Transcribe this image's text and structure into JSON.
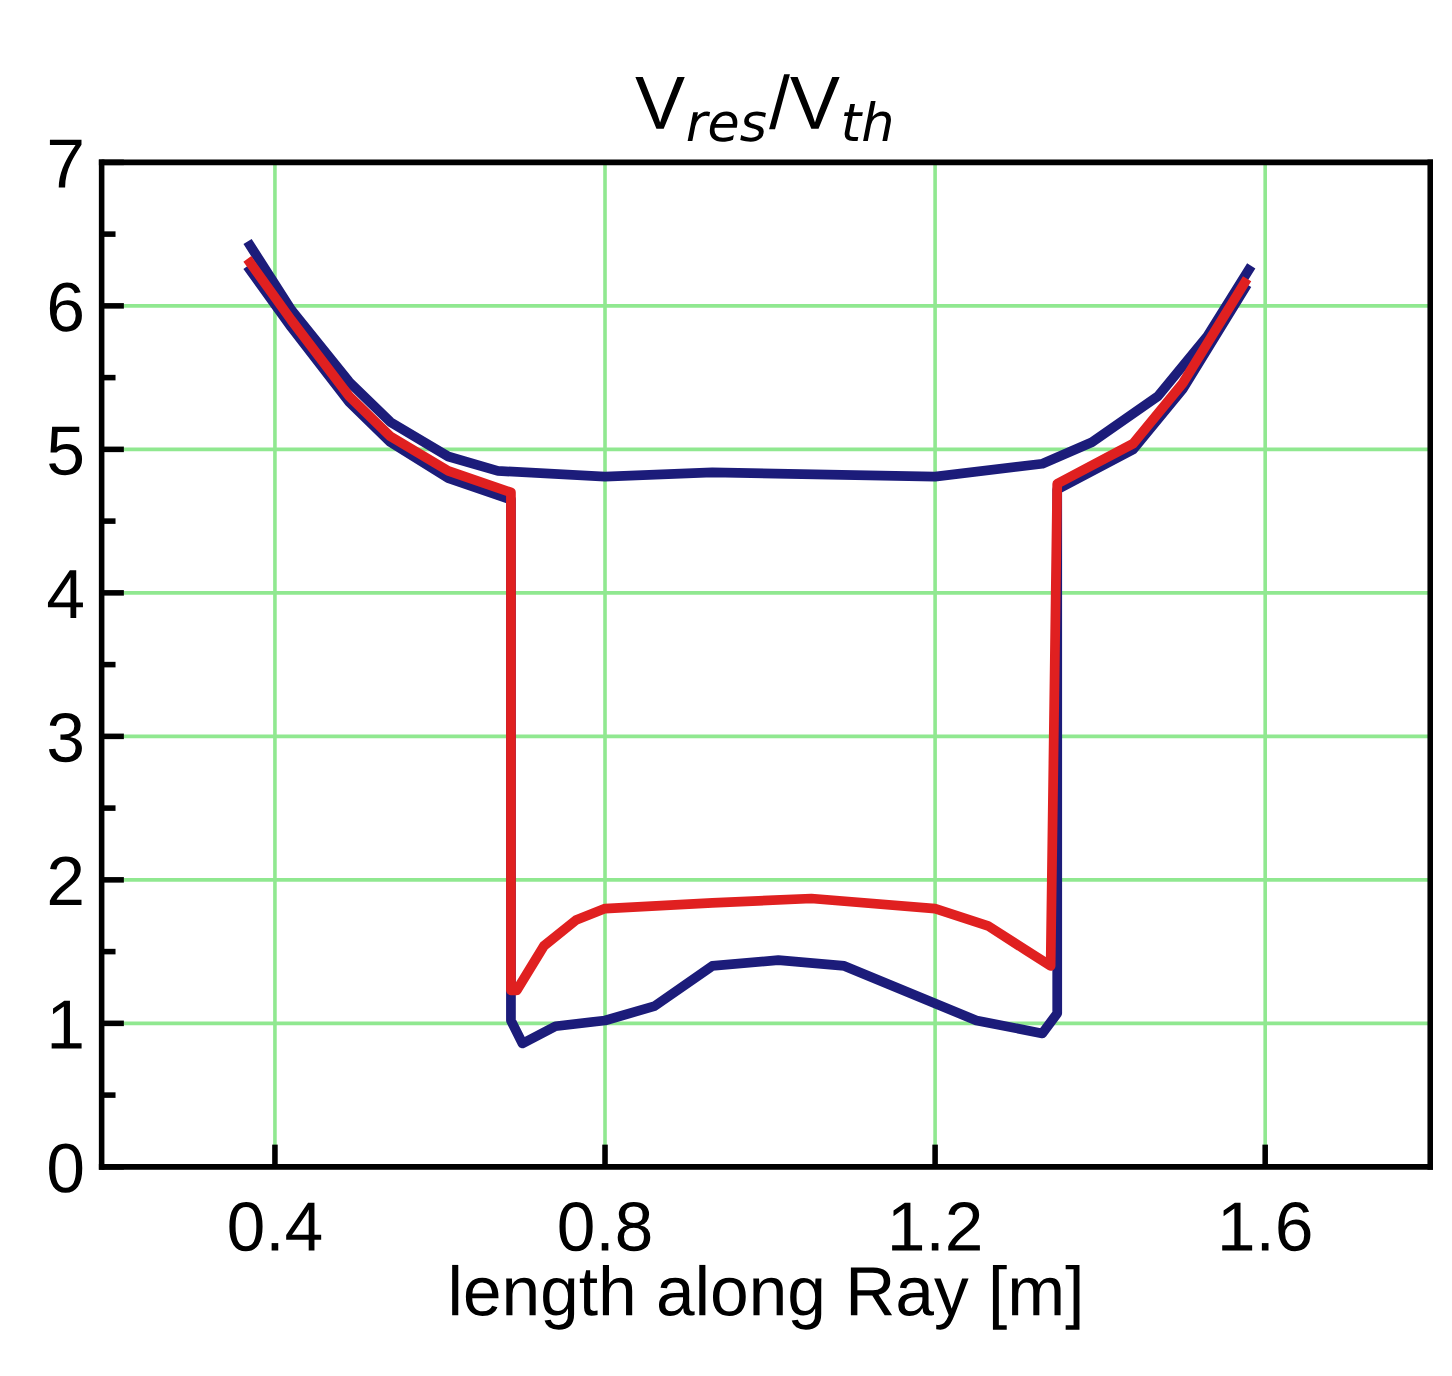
{
  "chart_data": {
    "type": "line",
    "title": "V$_{res}$/V$_{th}$",
    "xlabel": "length along Ray [m]",
    "xlim": [
      0.19,
      1.8
    ],
    "ylim": [
      0,
      7
    ],
    "xticks": [
      0.4,
      0.8,
      1.2,
      1.6
    ],
    "yticks": [
      0,
      {
        "value": 0.5,
        "label": null
      },
      1,
      {
        "value": 1.5,
        "label": null
      },
      2,
      {
        "value": 2.5,
        "label": null
      },
      3,
      {
        "value": 3.5,
        "label": null
      },
      4,
      {
        "value": 4.5,
        "label": null
      },
      5,
      {
        "value": 5.5,
        "label": null
      },
      6,
      {
        "value": 6.5,
        "label": null
      },
      7
    ],
    "grid": true,
    "legend": false,
    "marker": "none",
    "line_style": "solid",
    "series": [
      {
        "color": "#1c1c7a",
        "x": [
          0.37,
          0.42,
          0.49,
          0.54,
          0.61,
          0.67,
          0.8,
          0.93,
          1.2,
          1.33,
          1.39,
          1.47,
          1.53,
          1.58
        ],
        "values": [
          6.42,
          5.97,
          5.47,
          5.19,
          4.95,
          4.85,
          4.81,
          4.84,
          4.81,
          4.9,
          5.05,
          5.37,
          5.79,
          6.25
        ]
      },
      {
        "color": "#1c1c7a",
        "x": [
          0.37,
          0.42,
          0.49,
          0.54,
          0.61,
          0.686,
          0.686,
          0.7,
          0.74,
          0.8,
          0.86,
          0.93,
          1.01,
          1.09,
          1.17,
          1.25,
          1.33,
          1.348,
          1.348,
          1.44,
          1.5,
          1.575
        ],
        "values": [
          6.25,
          5.85,
          5.33,
          5.05,
          4.8,
          4.65,
          1.02,
          0.86,
          0.98,
          1.02,
          1.12,
          1.4,
          1.44,
          1.4,
          1.21,
          1.02,
          0.93,
          1.07,
          4.72,
          5.0,
          5.42,
          6.12
        ]
      },
      {
        "color": "#e02020",
        "x": [
          0.37,
          0.42,
          0.49,
          0.54,
          0.61,
          0.686,
          0.686,
          0.693,
          0.726,
          0.765,
          0.8,
          0.93,
          1.05,
          1.2,
          1.264,
          1.31,
          1.34,
          1.348,
          1.44,
          1.5,
          1.575
        ],
        "values": [
          6.3,
          5.9,
          5.37,
          5.09,
          4.85,
          4.7,
          1.23,
          1.23,
          1.54,
          1.72,
          1.8,
          1.84,
          1.87,
          1.8,
          1.68,
          1.51,
          1.4,
          4.76,
          5.04,
          5.46,
          6.16
        ]
      }
    ]
  }
}
